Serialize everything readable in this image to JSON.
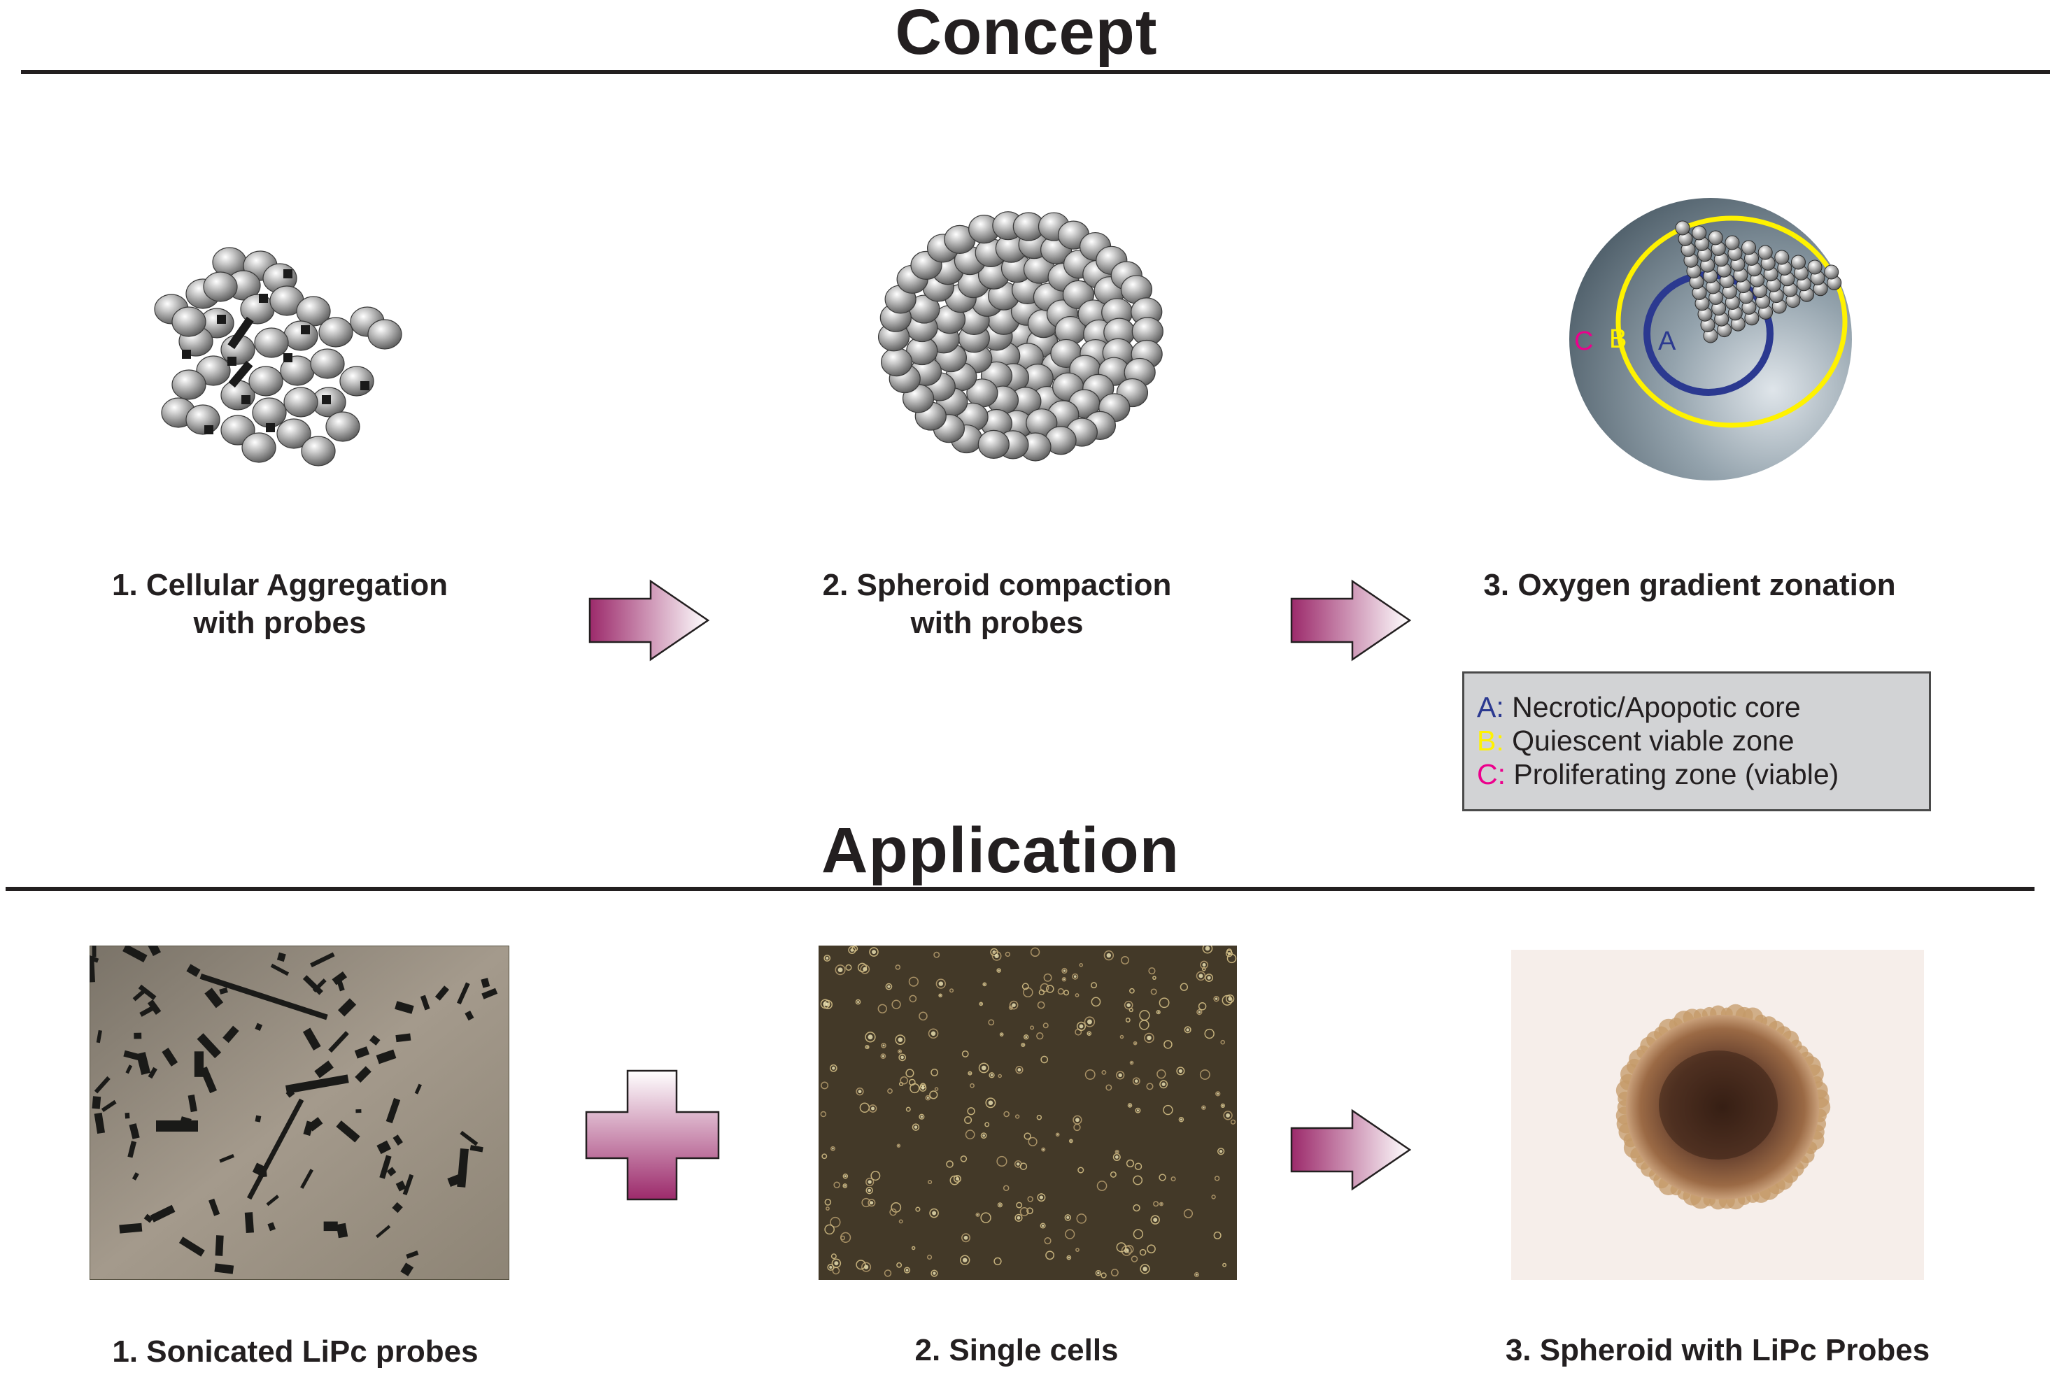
{
  "concept": {
    "title": "Concept",
    "steps": [
      {
        "line1": "1. Cellular Aggregation",
        "line2": "with probes"
      },
      {
        "line1": "2. Spheroid compaction",
        "line2": "with probes"
      },
      {
        "line1": "3. Oxygen gradient zonation",
        "line2": ""
      }
    ],
    "zone_labels": {
      "a": "A",
      "b": "B",
      "c": "C"
    },
    "legend": [
      {
        "key": "A:",
        "text": "Necrotic/Apopotic core",
        "color": "#2b3990"
      },
      {
        "key": "B:",
        "text": "Quiescent viable zone",
        "color": "#fff200"
      },
      {
        "key": "C:",
        "text": "Proliferating  zone (viable)",
        "color": "#ec008c"
      }
    ]
  },
  "application": {
    "title": "Application",
    "steps": [
      {
        "label": "1. Sonicated LiPc probes"
      },
      {
        "label": "2. Single cells"
      },
      {
        "label": "3. Spheroid with LiPc Probes"
      }
    ]
  },
  "colors": {
    "arrow_dark": "#9c2a6b",
    "arrow_light": "#ffffff",
    "cell_gray": "#9a9a9a",
    "zone_a_ring": "#2b3990",
    "zone_b_ring": "#fff200",
    "zone_c_text": "#ec008c"
  }
}
